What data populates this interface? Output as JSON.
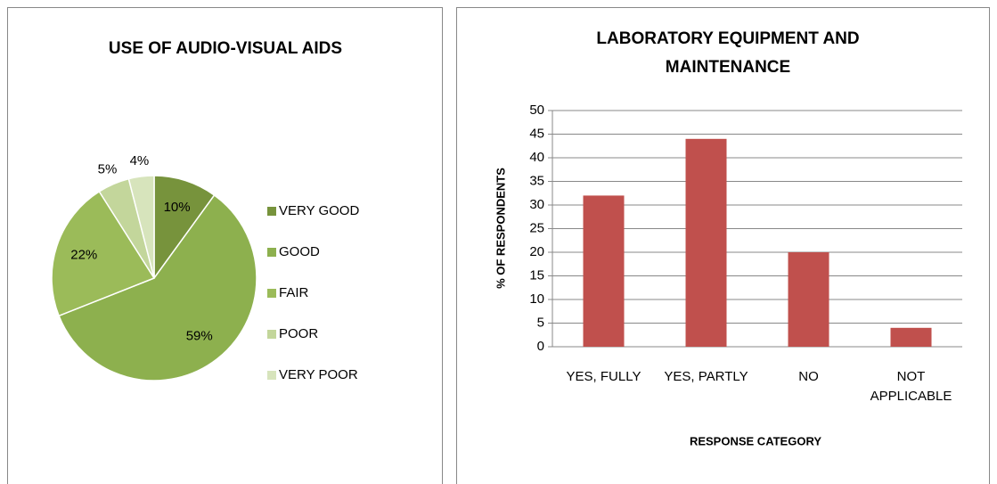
{
  "chart_data": [
    {
      "type": "pie",
      "title": "USE OF AUDIO-VISUAL AIDS",
      "categories": [
        "VERY GOOD",
        "GOOD",
        "FAIR",
        "POOR",
        "VERY POOR"
      ],
      "values": [
        10,
        59,
        22,
        5,
        4
      ],
      "value_labels": [
        "10%",
        "59%",
        "22%",
        "5%",
        "4%"
      ],
      "colors": [
        "#77933c",
        "#8db04e",
        "#9bbb59",
        "#c3d69b",
        "#d7e4bc"
      ],
      "legend": "right"
    },
    {
      "type": "bar",
      "title": "LABORATORY EQUIPMENT AND MAINTENANCE",
      "xlabel": "RESPONSE CATEGORY",
      "ylabel": "% OF RESPONDENTS",
      "categories": [
        "YES, FULLY",
        "YES, PARTLY",
        "NO",
        "NOT APPLICABLE"
      ],
      "values": [
        32,
        44,
        20,
        4
      ],
      "color": "#c0504d",
      "ylim": [
        0,
        50
      ],
      "yticks": [
        0,
        5,
        10,
        15,
        20,
        25,
        30,
        35,
        40,
        45,
        50
      ],
      "grid": true
    }
  ]
}
